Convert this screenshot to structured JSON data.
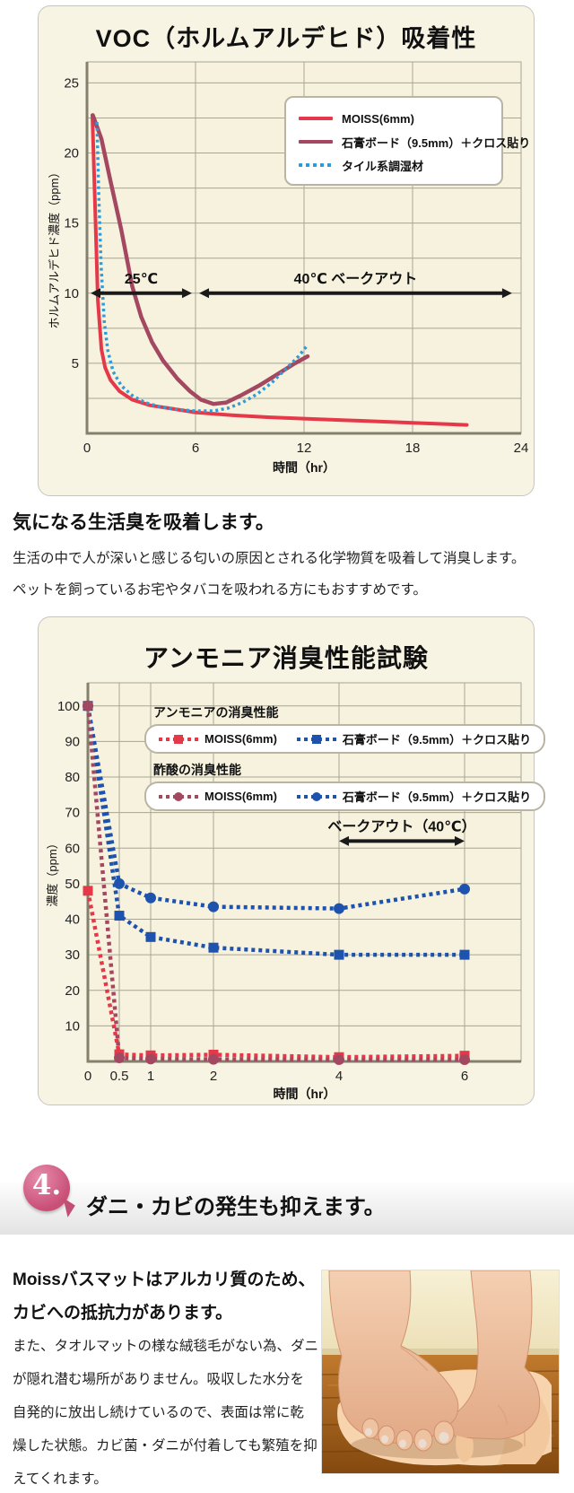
{
  "colors": {
    "page_bg": "#ffffff",
    "panel_bg": "#f8f4e3",
    "plot_bg": "#f7f2de",
    "grid": "#a9a595",
    "axis": "#84806e",
    "red": "#e5394a",
    "maroon": "#a44862",
    "sky_blue": "#2f9cd8",
    "royal_blue": "#1d53ae",
    "badge_pink": "#c94f77",
    "arrow_black": "#1a1a1a"
  },
  "voc_panel": {
    "title": "VOC（ホルムアルデヒド）吸着性"
  },
  "ammonia_panel": {
    "title": "アンモニア消臭性能試験"
  },
  "mid_text": {
    "heading": "気になる生活臭を吸着します。",
    "lines": [
      "生活の中で人が深いと感じる匂いの原因とされる化学物質を吸着して消臭します。",
      "ペットを飼っているお宅やタバコを吸われる方にもおすすめです。"
    ]
  },
  "section4": {
    "number": "4.",
    "heading": "ダニ・カビの発生も抑えます。",
    "lead_lines": [
      "Moissバスマットはアルカリ質のため、",
      "カビへの抵抗力があります。"
    ],
    "body_lines": [
      "また、タオルマットの様な絨毯毛がない為、ダニ",
      "が隠れ潜む場所がありません。吸収した水分を",
      "自発的に放出し続けているので、表面は常に乾",
      "燥した状態。カビ菌・ダニが付着しても繁殖を抑",
      "えてくれます。"
    ],
    "photo_alt": "feet-on-bathmat-photo"
  },
  "chart_data": [
    {
      "type": "line",
      "name": "voc-chart",
      "title": "VOC（ホルムアルデヒド）吸着性",
      "xlabel": "時間（hr）",
      "ylabel": "ホルムアルデヒド濃度（ppm）",
      "xlim": [
        0,
        24
      ],
      "ylim": [
        0,
        26.5
      ],
      "xticks": [
        0,
        6,
        12,
        18,
        24
      ],
      "yticks": [
        5,
        10,
        15,
        20,
        25
      ],
      "y_grid_step": 2.5,
      "grid": true,
      "legend_position": "upper right",
      "series": [
        {
          "id": "moiss",
          "name": "MOISS(6mm)",
          "color": "#e5394a",
          "style": "solid",
          "width": 4,
          "marker": "none",
          "points": [
            [
              0.3,
              22.7
            ],
            [
              0.45,
              16
            ],
            [
              0.6,
              9.5
            ],
            [
              0.8,
              6
            ],
            [
              1,
              4.7
            ],
            [
              1.3,
              3.8
            ],
            [
              1.8,
              3
            ],
            [
              2.5,
              2.4
            ],
            [
              3.5,
              2
            ],
            [
              4.5,
              1.8
            ],
            [
              6,
              1.5
            ],
            [
              8,
              1.3
            ],
            [
              10,
              1.15
            ],
            [
              12,
              1.05
            ],
            [
              15,
              0.9
            ],
            [
              18,
              0.75
            ],
            [
              21,
              0.6
            ]
          ]
        },
        {
          "id": "gypsum-board",
          "name": "石膏ボード（9.5mm）＋クロス貼り",
          "color": "#a44862",
          "style": "solid",
          "width": 4.5,
          "marker": "none",
          "points": [
            [
              0.32,
              22.7
            ],
            [
              0.8,
              21
            ],
            [
              1.3,
              18
            ],
            [
              1.9,
              14.5
            ],
            [
              2.5,
              10.5
            ],
            [
              3,
              8.3
            ],
            [
              3.6,
              6.5
            ],
            [
              4.2,
              5.2
            ],
            [
              5,
              3.9
            ],
            [
              5.7,
              3
            ],
            [
              6.3,
              2.4
            ],
            [
              7,
              2.1
            ],
            [
              7.7,
              2.2
            ],
            [
              8.5,
              2.7
            ],
            [
              9.5,
              3.4
            ],
            [
              10.5,
              4.2
            ],
            [
              11.5,
              5
            ],
            [
              12.2,
              5.5
            ]
          ]
        },
        {
          "id": "tile-material",
          "name": "タイル系調湿材",
          "color": "#2f9cd8",
          "style": "dotted",
          "width": 3.5,
          "dash": "3 3.5",
          "marker": "none",
          "points": [
            [
              0.55,
              22.2
            ],
            [
              0.65,
              17
            ],
            [
              0.78,
              12
            ],
            [
              0.95,
              8
            ],
            [
              1.15,
              5.9
            ],
            [
              1.45,
              4.4
            ],
            [
              1.9,
              3.4
            ],
            [
              2.5,
              2.7
            ],
            [
              3.2,
              2.2
            ],
            [
              4,
              1.9
            ],
            [
              5,
              1.7
            ],
            [
              6,
              1.6
            ],
            [
              7,
              1.6
            ],
            [
              7.8,
              1.8
            ],
            [
              8.6,
              2.2
            ],
            [
              9.4,
              2.8
            ],
            [
              10.2,
              3.6
            ],
            [
              11,
              4.6
            ],
            [
              11.7,
              5.5
            ],
            [
              12.2,
              6.3
            ]
          ]
        }
      ],
      "annotations": [
        {
          "type": "double-arrow",
          "label": "25℃",
          "x1": 0.2,
          "x2": 5.8,
          "y": 10
        },
        {
          "type": "double-arrow",
          "label": "40℃ ベークアウト",
          "x1": 6.2,
          "x2": 23.5,
          "y": 10
        }
      ]
    },
    {
      "type": "line",
      "name": "ammonia-chart",
      "title": "アンモニア消臭性能試験",
      "xlabel": "時間（hr）",
      "ylabel": "濃度（ppm）",
      "xlim": [
        0,
        6.9
      ],
      "ylim": [
        0,
        106.5
      ],
      "xticks": [
        0,
        0.5,
        1,
        2,
        4,
        6
      ],
      "yticks": [
        10,
        20,
        30,
        40,
        50,
        60,
        70,
        80,
        90,
        100
      ],
      "y_grid_step": 10,
      "grid": true,
      "legend_groups": [
        {
          "label": "アンモニアの消臭性能",
          "entries": [
            {
              "series": "ammonia-moiss",
              "name": "MOISS(6mm)",
              "color": "#e5394a",
              "marker": "square"
            },
            {
              "series": "ammonia-gypsum",
              "name": "石膏ボード（9.5mm）＋クロス貼り",
              "color": "#1d53ae",
              "marker": "square"
            }
          ]
        },
        {
          "label": "酢酸の消臭性能",
          "entries": [
            {
              "series": "acetic-moiss",
              "name": "MOISS(6mm)",
              "color": "#a44862",
              "marker": "circle"
            },
            {
              "series": "acetic-gypsum",
              "name": "石膏ボード（9.5mm）＋クロス貼り",
              "color": "#1d53ae",
              "marker": "circle"
            }
          ]
        }
      ],
      "series": [
        {
          "id": "ammonia-gypsum",
          "name": "石膏ボード（9.5mm）＋クロス貼り",
          "color": "#1d53ae",
          "style": "dotted",
          "width": 4.5,
          "dash": "4 4",
          "marker": "square",
          "points": [
            [
              0,
              100
            ],
            [
              0.5,
              41
            ],
            [
              1,
              35
            ],
            [
              2,
              32
            ],
            [
              4,
              30
            ],
            [
              6,
              30
            ]
          ]
        },
        {
          "id": "acetic-gypsum",
          "name": "石膏ボード（9.5mm）＋クロス貼り",
          "color": "#1d53ae",
          "style": "dotted",
          "width": 4.5,
          "dash": "4 4",
          "marker": "circle",
          "points": [
            [
              0,
              100
            ],
            [
              0.5,
              50
            ],
            [
              1,
              46
            ],
            [
              2,
              43.5
            ],
            [
              4,
              43
            ],
            [
              6,
              48.5
            ]
          ]
        },
        {
          "id": "ammonia-moiss",
          "name": "MOISS(6mm)",
          "color": "#e5394a",
          "style": "dotted",
          "width": 4.5,
          "dash": "4 4",
          "marker": "square",
          "points": [
            [
              0,
              48
            ],
            [
              0.5,
              2
            ],
            [
              1,
              1.7
            ],
            [
              2,
              1.9
            ],
            [
              4,
              1.2
            ],
            [
              6,
              1.6
            ]
          ]
        },
        {
          "id": "acetic-moiss",
          "name": "MOISS(6mm)",
          "color": "#a44862",
          "style": "dotted",
          "width": 4.5,
          "dash": "4 4",
          "marker": "circle",
          "points": [
            [
              0,
              100
            ],
            [
              0.5,
              1
            ],
            [
              1,
              0.7
            ],
            [
              2,
              0.6
            ],
            [
              4,
              0.5
            ],
            [
              6,
              0.5
            ]
          ]
        }
      ],
      "annotations": [
        {
          "type": "double-arrow",
          "label": "ベークアウト（40℃）",
          "x1": 4,
          "x2": 6,
          "y": 62
        }
      ]
    }
  ]
}
